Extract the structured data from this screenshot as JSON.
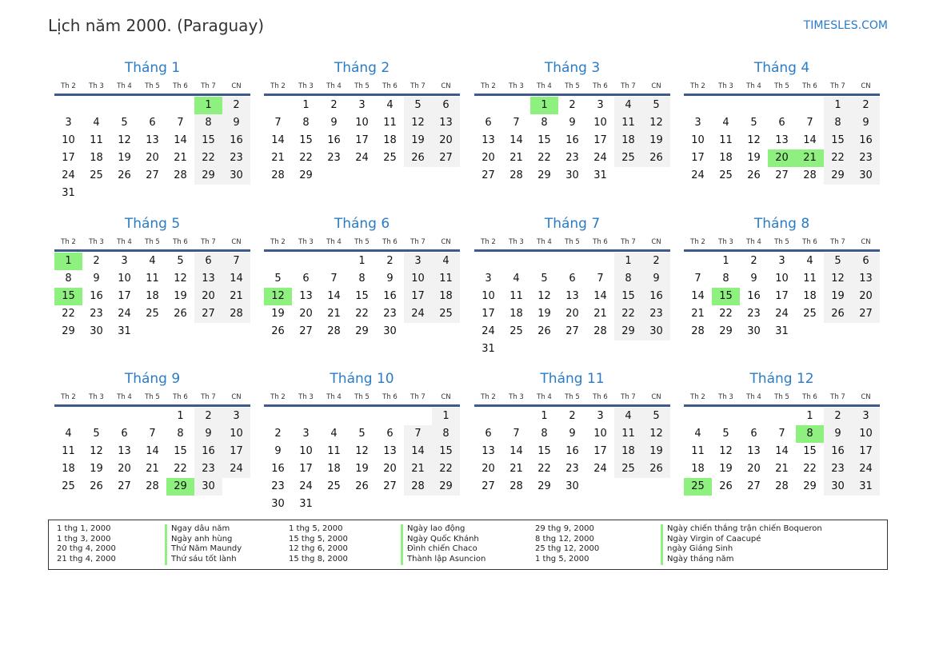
{
  "title": "Lịch năm 2000. (Paraguay)",
  "brand": "TIMESLES.COM",
  "weekdays": [
    "Th 2",
    "Th 3",
    "Th 4",
    "Th 5",
    "Th 6",
    "Th 7",
    "CN"
  ],
  "colors": {
    "accent": "#2a7cc7",
    "holiday": "#8ef07e",
    "weekend": "#f2f2f2"
  },
  "months": [
    {
      "name": "Tháng 1",
      "start": 5,
      "days": 31,
      "holidays": [
        1
      ]
    },
    {
      "name": "Tháng 2",
      "start": 1,
      "days": 29,
      "holidays": []
    },
    {
      "name": "Tháng 3",
      "start": 2,
      "days": 31,
      "holidays": [
        1
      ]
    },
    {
      "name": "Tháng 4",
      "start": 5,
      "days": 30,
      "holidays": [
        20,
        21
      ]
    },
    {
      "name": "Tháng 5",
      "start": 0,
      "days": 31,
      "holidays": [
        1,
        15
      ]
    },
    {
      "name": "Tháng 6",
      "start": 3,
      "days": 30,
      "holidays": [
        12
      ]
    },
    {
      "name": "Tháng 7",
      "start": 5,
      "days": 31,
      "holidays": []
    },
    {
      "name": "Tháng 8",
      "start": 1,
      "days": 31,
      "holidays": [
        15
      ]
    },
    {
      "name": "Tháng 9",
      "start": 4,
      "days": 30,
      "holidays": [
        29
      ]
    },
    {
      "name": "Tháng 10",
      "start": 6,
      "days": 31,
      "holidays": []
    },
    {
      "name": "Tháng 11",
      "start": 2,
      "days": 30,
      "holidays": []
    },
    {
      "name": "Tháng 12",
      "start": 4,
      "days": 31,
      "holidays": [
        8,
        25
      ]
    }
  ],
  "legend": [
    {
      "date": "1 thg 1, 2000",
      "name": "Ngay dâu năm"
    },
    {
      "date": "1 thg 3, 2000",
      "name": "Ngày anh hùng"
    },
    {
      "date": "20 thg 4, 2000",
      "name": "Thứ Năm Maundy"
    },
    {
      "date": "21 thg 4, 2000",
      "name": "Thứ sáu tốt lành"
    },
    {
      "date": "1 thg 5, 2000",
      "name": "Ngày lao động"
    },
    {
      "date": "15 thg 5, 2000",
      "name": "Ngày Quốc Khánh"
    },
    {
      "date": "12 thg 6, 2000",
      "name": "Đình chiến Chaco"
    },
    {
      "date": "15 thg 8, 2000",
      "name": "Thành lập Asuncion"
    },
    {
      "date": "29 thg 9, 2000",
      "name": "Ngày chiến thắng trận chiến Boqueron"
    },
    {
      "date": "8 thg 12, 2000",
      "name": "Ngày Virgin of Caacupé"
    },
    {
      "date": "25 thg 12, 2000",
      "name": "ngày Giáng Sinh"
    },
    {
      "date": "1 thg 5, 2000",
      "name": "Ngày tháng năm"
    }
  ]
}
